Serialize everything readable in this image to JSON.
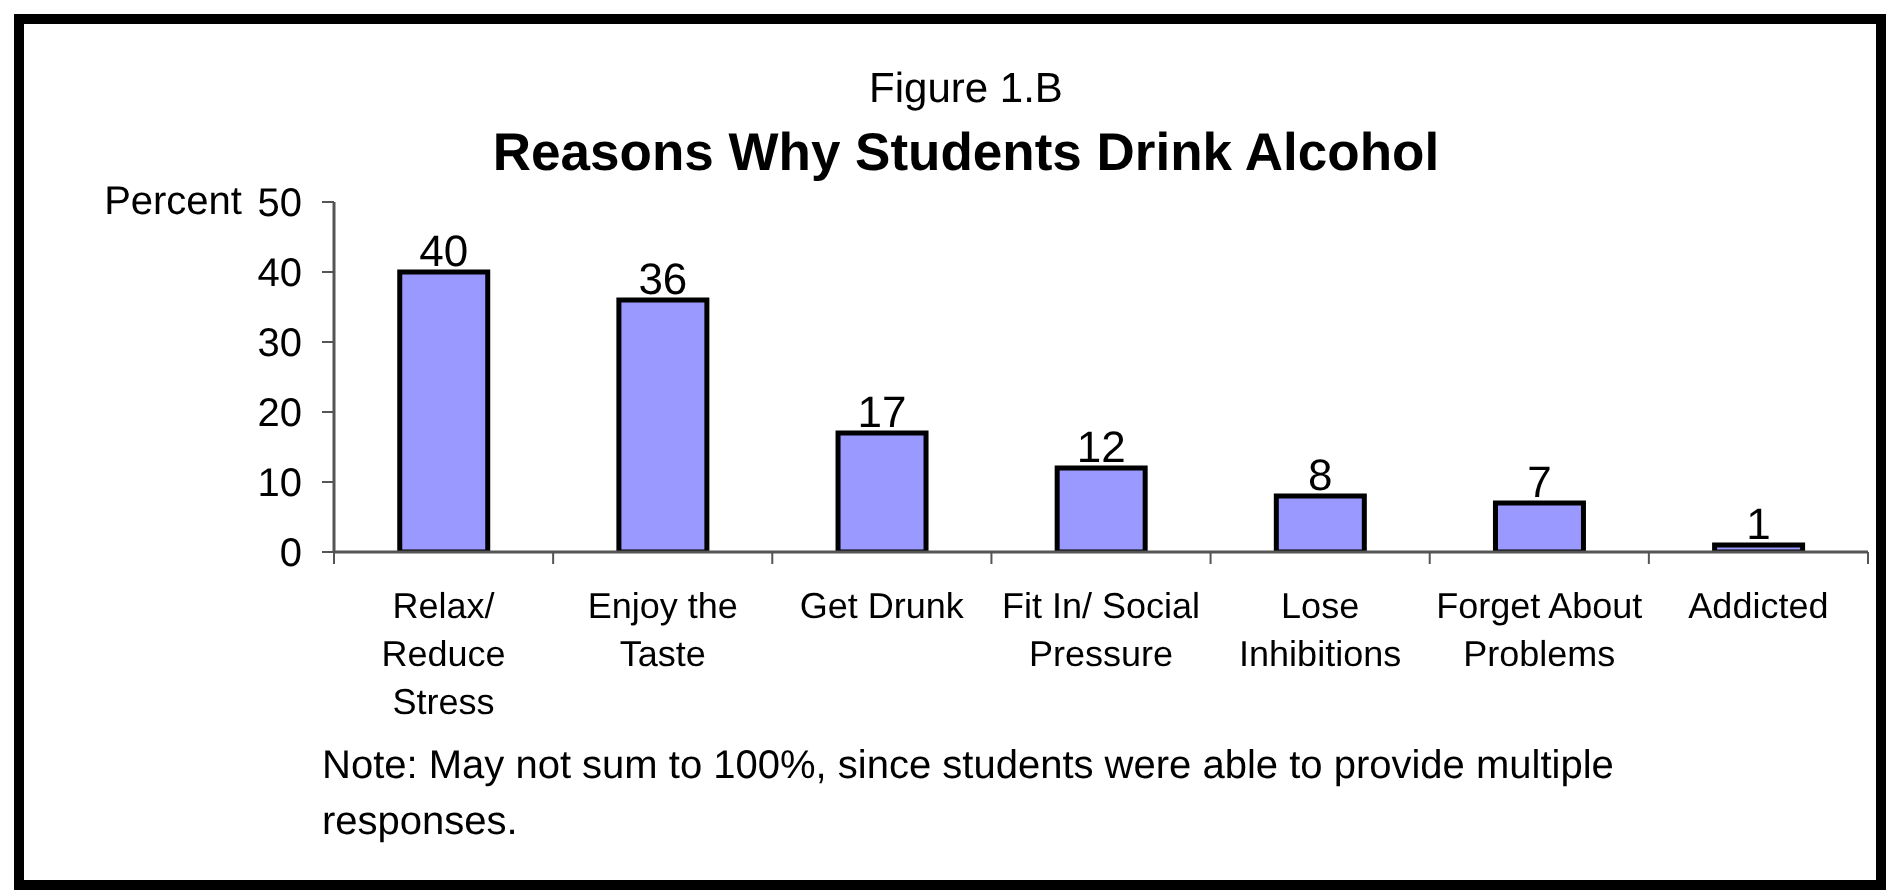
{
  "chart_data": {
    "type": "bar",
    "subtitle": "Figure 1.B",
    "title": "Reasons Why Students Drink Alcohol",
    "ylabel": "Percent",
    "categories": [
      "Relax/ Reduce Stress",
      "Enjoy the Taste",
      "Get Drunk",
      "Fit In/ Social Pressure",
      "Lose Inhibitions",
      "Forget About Problems",
      "Addicted"
    ],
    "values": [
      40,
      36,
      17,
      12,
      8,
      7,
      1
    ],
    "color": "#9999ff",
    "ylim": [
      0,
      50
    ],
    "yticks": [
      0,
      10,
      20,
      30,
      40,
      50
    ],
    "data_labels": true,
    "annotations": [
      "Note: May not sum to 100%, since students were able to provide multiple responses."
    ]
  }
}
